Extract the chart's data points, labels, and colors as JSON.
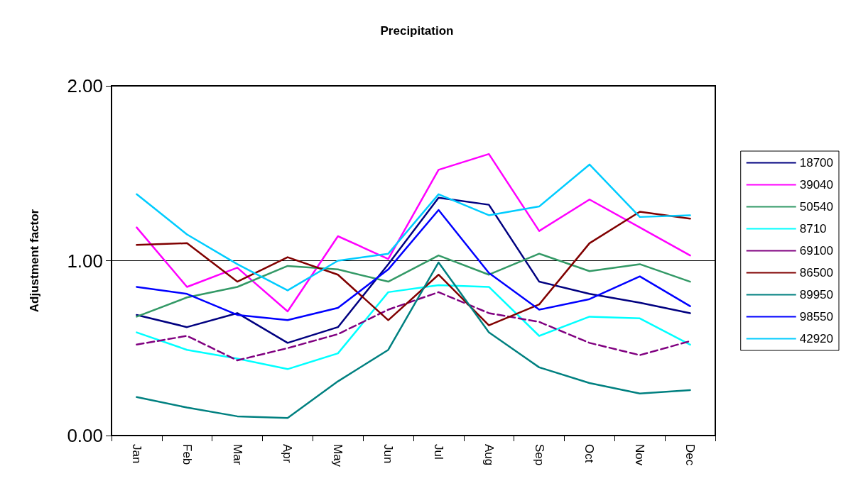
{
  "chart_data": {
    "type": "line",
    "title": "Precipitation",
    "ylabel": "Adjustment factor",
    "categories": [
      "Jan",
      "Feb",
      "Mar",
      "Apr",
      "May",
      "Jun",
      "Jul",
      "Aug",
      "Sep",
      "Oct",
      "Nov",
      "Dec"
    ],
    "ylim": [
      0,
      2
    ],
    "yticks": [
      {
        "value": 0,
        "label": "0.00"
      },
      {
        "value": 1,
        "label": "1.00"
      },
      {
        "value": 2,
        "label": "2.00"
      }
    ],
    "grid": "y",
    "legend": "right",
    "marker": "none",
    "line_style": "solid",
    "series": [
      {
        "name": "18700",
        "color": "#000080",
        "values": [
          0.69,
          0.62,
          0.7,
          0.53,
          0.62,
          0.98,
          1.36,
          1.32,
          0.88,
          0.81,
          0.76,
          0.7
        ]
      },
      {
        "name": "39040",
        "color": "#ff00ff",
        "values": [
          1.19,
          0.85,
          0.96,
          0.71,
          1.14,
          1.01,
          1.52,
          1.61,
          1.17,
          1.35,
          1.19,
          1.03
        ]
      },
      {
        "name": "50540",
        "color": "#339966",
        "values": [
          0.68,
          0.79,
          0.85,
          0.97,
          0.95,
          0.88,
          1.03,
          0.92,
          1.04,
          0.94,
          0.98,
          0.88
        ]
      },
      {
        "name": "8710",
        "color": "#00ffff",
        "values": [
          0.59,
          0.49,
          0.44,
          0.38,
          0.47,
          0.82,
          0.86,
          0.85,
          0.57,
          0.68,
          0.67,
          0.52
        ]
      },
      {
        "name": "69100",
        "color": "#800080",
        "line_style": "dashed",
        "values": [
          0.52,
          0.57,
          0.43,
          0.5,
          0.58,
          0.72,
          0.82,
          0.7,
          0.65,
          0.53,
          0.46,
          0.54
        ]
      },
      {
        "name": "86500",
        "color": "#800000",
        "values": [
          1.09,
          1.1,
          0.88,
          1.02,
          0.92,
          0.66,
          0.92,
          0.63,
          0.75,
          1.1,
          1.28,
          1.24
        ]
      },
      {
        "name": "89950",
        "color": "#008080",
        "values": [
          0.22,
          0.16,
          0.11,
          0.1,
          0.31,
          0.49,
          0.99,
          0.59,
          0.39,
          0.3,
          0.24,
          0.26
        ]
      },
      {
        "name": "98550",
        "color": "#0000ff",
        "values": [
          0.85,
          0.81,
          0.69,
          0.66,
          0.73,
          0.95,
          1.29,
          0.93,
          0.72,
          0.78,
          0.91,
          0.74
        ]
      },
      {
        "name": "42920",
        "color": "#00ccff",
        "values": [
          1.38,
          1.15,
          0.98,
          0.83,
          1.0,
          1.04,
          1.38,
          1.26,
          1.31,
          1.55,
          1.25,
          1.26
        ]
      }
    ]
  }
}
